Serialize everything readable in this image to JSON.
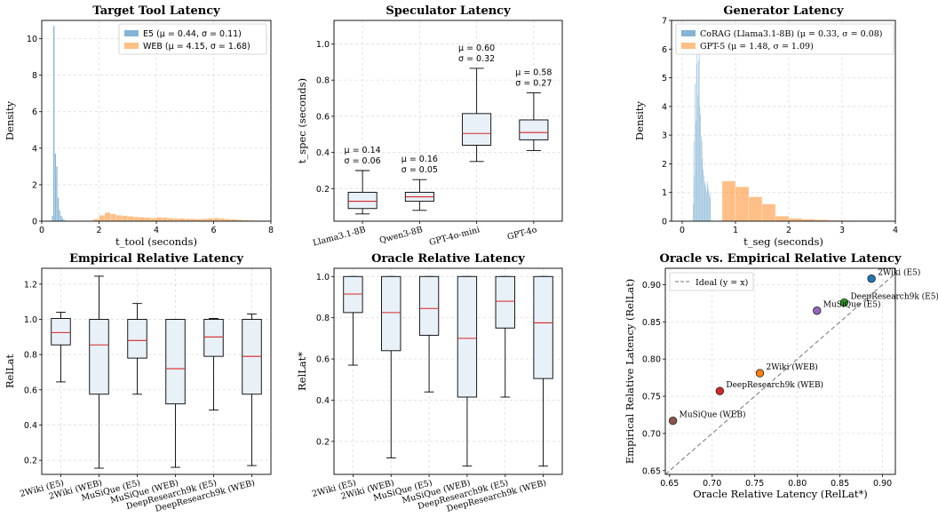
{
  "chart_data": [
    {
      "type": "histogram",
      "title": "Target Tool Latency",
      "xlabel": "t_tool (seconds)",
      "ylabel": "Density",
      "xlim": [
        0,
        8
      ],
      "ylim": [
        0,
        11
      ],
      "xticks": [
        0,
        2,
        4,
        6,
        8
      ],
      "yticks": [
        0,
        2,
        4,
        6,
        8,
        10
      ],
      "grid": true,
      "legend": "top-right",
      "series": [
        {
          "name": "E5 (μ = 0.44, σ = 0.11)",
          "color": "#1f77b4",
          "bin_width": 0.05,
          "bins": [
            [
              0.35,
              0.3
            ],
            [
              0.4,
              10.7
            ],
            [
              0.45,
              3.7
            ],
            [
              0.5,
              3.0
            ],
            [
              0.55,
              1.3
            ],
            [
              0.6,
              0.6
            ],
            [
              0.65,
              0.3
            ],
            [
              0.7,
              0.15
            ],
            [
              0.75,
              0.08
            ],
            [
              0.8,
              0.05
            ]
          ]
        },
        {
          "name": "WEB (μ = 4.15, σ = 1.68)",
          "color": "#ff7f0e",
          "bin_width": 0.2,
          "bins": [
            [
              1.8,
              0.12
            ],
            [
              2.0,
              0.32
            ],
            [
              2.2,
              0.48
            ],
            [
              2.4,
              0.4
            ],
            [
              2.6,
              0.33
            ],
            [
              2.8,
              0.3
            ],
            [
              3.0,
              0.27
            ],
            [
              3.2,
              0.24
            ],
            [
              3.4,
              0.22
            ],
            [
              3.6,
              0.2
            ],
            [
              3.8,
              0.18
            ],
            [
              4.0,
              0.22
            ],
            [
              4.2,
              0.2
            ],
            [
              4.4,
              0.17
            ],
            [
              4.6,
              0.15
            ],
            [
              4.8,
              0.16
            ],
            [
              5.0,
              0.14
            ],
            [
              5.2,
              0.13
            ],
            [
              5.4,
              0.12
            ],
            [
              5.6,
              0.14
            ],
            [
              5.8,
              0.16
            ],
            [
              6.0,
              0.18
            ],
            [
              6.2,
              0.15
            ],
            [
              6.4,
              0.12
            ],
            [
              6.6,
              0.1
            ],
            [
              6.8,
              0.08
            ],
            [
              7.0,
              0.06
            ],
            [
              7.2,
              0.05
            ],
            [
              7.4,
              0.04
            ],
            [
              7.6,
              0.03
            ],
            [
              7.8,
              0.03
            ]
          ]
        }
      ]
    },
    {
      "type": "box",
      "title": "Speculator Latency",
      "ylabel": "t_spec (seconds)",
      "ylim": [
        0.02,
        1.13
      ],
      "yticks": [
        0.2,
        0.4,
        0.6,
        0.8,
        1.0
      ],
      "categories": [
        "Llama3.1-8B",
        "Qwen3-8B",
        "GPT-4o-mini",
        "GPT-4o"
      ],
      "boxes": [
        {
          "whislo": 0.06,
          "q1": 0.09,
          "med": 0.13,
          "q3": 0.18,
          "whishi": 0.3,
          "mean_label": "μ = 0.14",
          "std_label": "σ = 0.06"
        },
        {
          "whislo": 0.08,
          "q1": 0.13,
          "med": 0.155,
          "q3": 0.18,
          "whishi": 0.25,
          "mean_label": "μ = 0.16",
          "std_label": "σ = 0.05"
        },
        {
          "whislo": 0.35,
          "q1": 0.44,
          "med": 0.505,
          "q3": 0.615,
          "whishi": 0.865,
          "mean_label": "μ = 0.60",
          "std_label": "σ = 0.32"
        },
        {
          "whislo": 0.41,
          "q1": 0.47,
          "med": 0.51,
          "q3": 0.58,
          "whishi": 0.73,
          "mean_label": "μ = 0.58",
          "std_label": "σ = 0.27"
        }
      ],
      "grid": true
    },
    {
      "type": "histogram",
      "title": "Generator Latency",
      "xlabel": "t_seg (seconds)",
      "ylabel": "Density",
      "xlim": [
        -0.2,
        4
      ],
      "ylim": [
        0,
        7
      ],
      "xticks": [
        0,
        1,
        2,
        3,
        4
      ],
      "yticks": [
        0,
        1,
        2,
        3,
        4,
        5,
        6,
        7
      ],
      "grid": true,
      "legend": "top-left",
      "series": [
        {
          "name": "CoRAG (Llama3.1-8B) (μ = 0.33, σ = 0.08)",
          "color": "#1f77b4",
          "bin_width": 0.0125,
          "bins": [
            [
              0.2,
              0.6
            ],
            [
              0.2125,
              2.8
            ],
            [
              0.225,
              1.6
            ],
            [
              0.2375,
              4.8
            ],
            [
              0.25,
              3.5
            ],
            [
              0.2625,
              5.5
            ],
            [
              0.275,
              6.3
            ],
            [
              0.2875,
              4.4
            ],
            [
              0.3,
              5.6
            ],
            [
              0.3125,
              6.0
            ],
            [
              0.325,
              4.0
            ],
            [
              0.3375,
              3.7
            ],
            [
              0.35,
              3.0
            ],
            [
              0.3625,
              2.8
            ],
            [
              0.375,
              2.2
            ],
            [
              0.3875,
              1.8
            ],
            [
              0.4,
              1.6
            ],
            [
              0.4125,
              1.4
            ],
            [
              0.425,
              1.3
            ],
            [
              0.4375,
              1.2
            ],
            [
              0.45,
              1.0
            ],
            [
              0.4625,
              1.4
            ],
            [
              0.475,
              1.3
            ],
            [
              0.4875,
              1.1
            ],
            [
              0.5,
              0.9
            ],
            [
              0.5125,
              1.0
            ],
            [
              0.525,
              0.8
            ]
          ]
        },
        {
          "name": "GPT-5 (μ = 1.48, σ = 1.09)",
          "color": "#ff7f0e",
          "bin_width": 0.25,
          "bins": [
            [
              0.5,
              0.0
            ],
            [
              0.75,
              1.4
            ],
            [
              1.0,
              1.2
            ],
            [
              1.25,
              0.85
            ],
            [
              1.5,
              0.6
            ],
            [
              1.75,
              0.18
            ],
            [
              2.0,
              0.1
            ],
            [
              2.25,
              0.07
            ],
            [
              2.5,
              0.05
            ],
            [
              2.75,
              0.03
            ],
            [
              3.0,
              0.025
            ],
            [
              3.25,
              0.02
            ],
            [
              3.5,
              0.015
            ],
            [
              3.75,
              0.01
            ]
          ]
        }
      ]
    },
    {
      "type": "box",
      "title": "Empirical Relative Latency",
      "ylabel": "RelLat",
      "ylim": [
        0.12,
        1.29
      ],
      "yticks": [
        0.2,
        0.4,
        0.6,
        0.8,
        1.0,
        1.2
      ],
      "categories": [
        "2Wiki (E5)",
        "2Wiki (WEB)",
        "MuSiQue (E5)",
        "MuSiQue (WEB)",
        "DeepResearch9k (E5)",
        "DeepResearch9k (WEB)"
      ],
      "boxes": [
        {
          "whislo": 0.645,
          "q1": 0.855,
          "med": 0.925,
          "q3": 1.005,
          "whishi": 1.04
        },
        {
          "whislo": 0.155,
          "q1": 0.575,
          "med": 0.855,
          "q3": 1.0,
          "whishi": 1.245
        },
        {
          "whislo": 0.575,
          "q1": 0.78,
          "med": 0.88,
          "q3": 1.0,
          "whishi": 1.09
        },
        {
          "whislo": 0.16,
          "q1": 0.52,
          "med": 0.72,
          "q3": 1.0,
          "whishi": 1.0
        },
        {
          "whislo": 0.485,
          "q1": 0.79,
          "med": 0.9,
          "q3": 1.0,
          "whishi": 1.005
        },
        {
          "whislo": 0.17,
          "q1": 0.575,
          "med": 0.79,
          "q3": 1.0,
          "whishi": 1.03
        }
      ],
      "grid": true
    },
    {
      "type": "box",
      "title": "Oracle Relative Latency",
      "ylabel": "RelLat*",
      "ylim": [
        0.04,
        1.04
      ],
      "yticks": [
        0.2,
        0.4,
        0.6,
        0.8,
        1.0
      ],
      "categories": [
        "2Wiki (E5)",
        "2Wiki (WEB)",
        "MuSiQue (E5)",
        "MuSiQue (WEB)",
        "DeepResearch9k (E5)",
        "DeepResearch9k (WEB)"
      ],
      "boxes": [
        {
          "whislo": 0.57,
          "q1": 0.825,
          "med": 0.915,
          "q3": 1.0,
          "whishi": 1.0
        },
        {
          "whislo": 0.12,
          "q1": 0.64,
          "med": 0.825,
          "q3": 1.0,
          "whishi": 1.0
        },
        {
          "whislo": 0.44,
          "q1": 0.715,
          "med": 0.845,
          "q3": 1.0,
          "whishi": 1.0
        },
        {
          "whislo": 0.08,
          "q1": 0.415,
          "med": 0.7,
          "q3": 1.0,
          "whishi": 1.0
        },
        {
          "whislo": 0.415,
          "q1": 0.75,
          "med": 0.88,
          "q3": 1.0,
          "whishi": 1.0
        },
        {
          "whislo": 0.08,
          "q1": 0.505,
          "med": 0.775,
          "q3": 1.0,
          "whishi": 1.0
        }
      ],
      "grid": true
    },
    {
      "type": "scatter",
      "title": "Oracle vs. Empirical Relative Latency",
      "xlabel": "Oracle Relative Latency (RelLat*)",
      "ylabel": "Empirical Relative Latency (RelLat)",
      "xlim": [
        0.645,
        0.915
      ],
      "ylim": [
        0.645,
        0.922
      ],
      "xticks": [
        0.65,
        0.7,
        0.75,
        0.8,
        0.85,
        0.9
      ],
      "yticks": [
        0.65,
        0.7,
        0.75,
        0.8,
        0.85,
        0.9
      ],
      "grid": true,
      "legend": "top-left",
      "reference_line": {
        "label": "Ideal (y = x)"
      },
      "points": [
        {
          "label": "2Wiki (E5)",
          "x": 0.887,
          "y": 0.908,
          "color": "#1f77b4"
        },
        {
          "label": "DeepResearch9k (E5)",
          "x": 0.855,
          "y": 0.876,
          "color": "#2ca02c"
        },
        {
          "label": "MuSiQue (E5)",
          "x": 0.823,
          "y": 0.865,
          "color": "#9467bd"
        },
        {
          "label": "2Wiki (WEB)",
          "x": 0.756,
          "y": 0.781,
          "color": "#ff7f0e"
        },
        {
          "label": "DeepResearch9k (WEB)",
          "x": 0.709,
          "y": 0.757,
          "color": "#d62728"
        },
        {
          "label": "MuSiQue (WEB)",
          "x": 0.654,
          "y": 0.717,
          "color": "#8c564b"
        }
      ]
    }
  ]
}
